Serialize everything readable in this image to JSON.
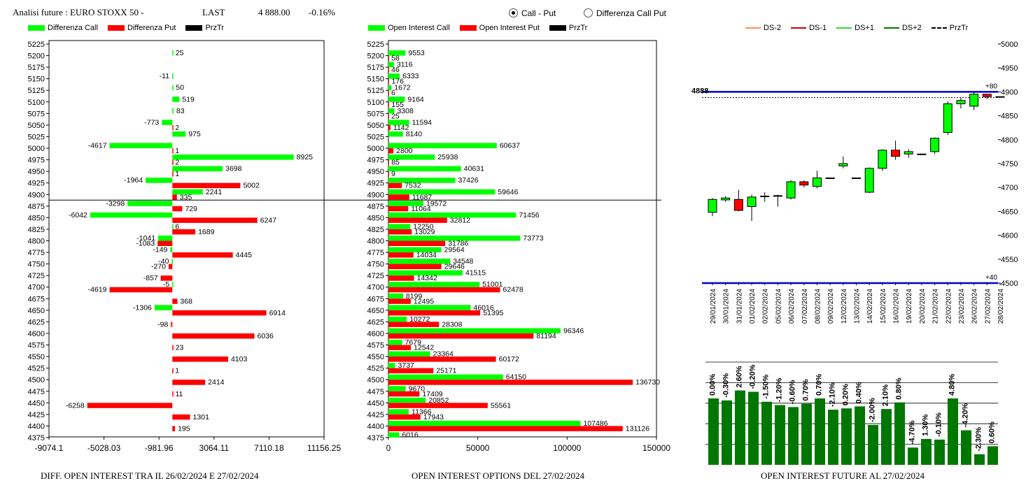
{
  "header": {
    "title": "Analisi future : EURO STOXX 50 -",
    "last_label": "LAST",
    "last_value": "4 888.00",
    "change": "-0.16%"
  },
  "radio": {
    "options": [
      "Call - Put",
      "Differenza Call Put"
    ],
    "selected": "Call - Put"
  },
  "colors": {
    "green": "#00ff00",
    "red": "#ff0000",
    "dark_green": "#007700",
    "blue": "#0000cc"
  },
  "panel_titles": {
    "left": "DIFF. OPEN INTEREST TRA IL 26/02/2024 E 27/02/2024",
    "middle": "OPEN INTEREST OPTIONS DEL 27/02/2024",
    "right": "OPEN INTEREST FUTURE AL 27/02/2024"
  },
  "chart_data": [
    {
      "type": "bar",
      "orientation": "horizontal",
      "legend": [
        "Differenza Call",
        "Differenza Put",
        "PrzTr"
      ],
      "strikes": [
        5225,
        5200,
        5175,
        5150,
        5125,
        5100,
        5075,
        5050,
        5025,
        5000,
        4975,
        4950,
        4925,
        4900,
        4875,
        4850,
        4825,
        4800,
        4775,
        4750,
        4725,
        4700,
        4675,
        4650,
        4625,
        4600,
        4575,
        4550,
        4525,
        4500,
        4475,
        4450,
        4425,
        4400,
        4375
      ],
      "xticks": [
        "-9074.1",
        "-5028.03",
        "-981.96",
        "3064.11",
        "7110.18",
        "11156.25"
      ],
      "xlim": [
        -9074.1,
        11156.25
      ],
      "call_diff": [
        {
          "strike": 5200,
          "value": 25
        },
        {
          "strike": 5150,
          "value": -11
        },
        {
          "strike": 5125,
          "value": 50
        },
        {
          "strike": 5100,
          "value": 519
        },
        {
          "strike": 5075,
          "value": 83
        },
        {
          "strike": 5050,
          "value": -773
        },
        {
          "strike": 5025,
          "value": 975
        },
        {
          "strike": 5000,
          "value": -4617
        },
        {
          "strike": 4975,
          "value": 8925
        },
        {
          "strike": 4950,
          "value": 3698
        },
        {
          "strike": 4925,
          "value": -1964
        },
        {
          "strike": 4900,
          "value": 2241
        },
        {
          "strike": 4875,
          "value": -3298
        },
        {
          "strike": 4850,
          "value": -6042
        },
        {
          "strike": 4825,
          "value": 6
        },
        {
          "strike": 4800,
          "value": -1041
        },
        {
          "strike": 4775,
          "value": -149
        },
        {
          "strike": 4750,
          "value": -40
        },
        {
          "strike": 4700,
          "value": -5
        },
        {
          "strike": 4650,
          "value": -1306
        }
      ],
      "put_diff": [
        {
          "strike": 5050,
          "value": 2
        },
        {
          "strike": 5000,
          "value": 1
        },
        {
          "strike": 4975,
          "value": 2
        },
        {
          "strike": 4950,
          "value": 1
        },
        {
          "strike": 4925,
          "value": 5002
        },
        {
          "strike": 4900,
          "value": 335
        },
        {
          "strike": 4875,
          "value": 729
        },
        {
          "strike": 4850,
          "value": 6247
        },
        {
          "strike": 4825,
          "value": 1689
        },
        {
          "strike": 4800,
          "value": -1083
        },
        {
          "strike": 4775,
          "value": 4445
        },
        {
          "strike": 4750,
          "value": -270
        },
        {
          "strike": 4725,
          "value": -857
        },
        {
          "strike": 4700,
          "value": -4619
        },
        {
          "strike": 4675,
          "value": 368
        },
        {
          "strike": 4650,
          "value": 6914
        },
        {
          "strike": 4625,
          "value": -98
        },
        {
          "strike": 4600,
          "value": 6036
        },
        {
          "strike": 4575,
          "value": 23
        },
        {
          "strike": 4550,
          "value": 4103
        },
        {
          "strike": 4525,
          "value": 1
        },
        {
          "strike": 4500,
          "value": 2414
        },
        {
          "strike": 4475,
          "value": 11
        },
        {
          "strike": 4450,
          "value": -6258
        },
        {
          "strike": 4425,
          "value": 1301
        },
        {
          "strike": 4400,
          "value": 195
        }
      ],
      "przTr_strike": 4888
    },
    {
      "type": "bar",
      "orientation": "horizontal",
      "legend": [
        "Open Interest Call",
        "Open Interest Put",
        "PrzTr"
      ],
      "strikes": [
        5225,
        5200,
        5175,
        5150,
        5125,
        5100,
        5075,
        5050,
        5025,
        5000,
        4975,
        4950,
        4925,
        4900,
        4875,
        4850,
        4825,
        4800,
        4775,
        4750,
        4725,
        4700,
        4675,
        4650,
        4625,
        4600,
        4575,
        4550,
        4525,
        4500,
        4475,
        4450,
        4425,
        4400,
        4375
      ],
      "xticks": [
        "0",
        "50000",
        "100000",
        "150000"
      ],
      "xlim": [
        0,
        150000
      ],
      "call_oi": [
        {
          "strike": 5200,
          "value": 9553
        },
        {
          "strike": 5175,
          "value": 3116
        },
        {
          "strike": 5150,
          "value": 6333
        },
        {
          "strike": 5125,
          "value": 1672
        },
        {
          "strike": 5100,
          "value": 9164
        },
        {
          "strike": 5075,
          "value": 3308
        },
        {
          "strike": 5050,
          "value": 11594
        },
        {
          "strike": 5025,
          "value": 8140
        },
        {
          "strike": 5000,
          "value": 60637
        },
        {
          "strike": 4975,
          "value": 25938
        },
        {
          "strike": 4950,
          "value": 40631
        },
        {
          "strike": 4925,
          "value": 37426
        },
        {
          "strike": 4900,
          "value": 59646
        },
        {
          "strike": 4875,
          "value": 19572
        },
        {
          "strike": 4850,
          "value": 71456
        },
        {
          "strike": 4825,
          "value": 12250
        },
        {
          "strike": 4800,
          "value": 73773
        },
        {
          "strike": 4775,
          "value": 29564
        },
        {
          "strike": 4750,
          "value": 34548
        },
        {
          "strike": 4725,
          "value": 41515
        },
        {
          "strike": 4700,
          "value": 51001
        },
        {
          "strike": 4675,
          "value": 8199
        },
        {
          "strike": 4650,
          "value": 46016
        },
        {
          "strike": 4625,
          "value": 10272
        },
        {
          "strike": 4600,
          "value": 96346
        },
        {
          "strike": 4575,
          "value": 7679
        },
        {
          "strike": 4550,
          "value": 23364
        },
        {
          "strike": 4525,
          "value": 3737
        },
        {
          "strike": 4500,
          "value": 64150
        },
        {
          "strike": 4475,
          "value": 9670
        },
        {
          "strike": 4450,
          "value": 20852
        },
        {
          "strike": 4425,
          "value": 11366
        },
        {
          "strike": 4400,
          "value": 107486
        },
        {
          "strike": 4375,
          "value": 6016
        }
      ],
      "put_oi": [
        {
          "strike": 5200,
          "value": 58
        },
        {
          "strike": 5175,
          "value": 46
        },
        {
          "strike": 5150,
          "value": 176
        },
        {
          "strike": 5125,
          "value": 6
        },
        {
          "strike": 5100,
          "value": 155
        },
        {
          "strike": 5075,
          "value": 25
        },
        {
          "strike": 5050,
          "value": 1142
        },
        {
          "strike": 5000,
          "value": 2800
        },
        {
          "strike": 4975,
          "value": 85
        },
        {
          "strike": 4950,
          "value": 9
        },
        {
          "strike": 4925,
          "value": 7532
        },
        {
          "strike": 4900,
          "value": 11687
        },
        {
          "strike": 4875,
          "value": 11064
        },
        {
          "strike": 4850,
          "value": 32812
        },
        {
          "strike": 4825,
          "value": 13029
        },
        {
          "strike": 4800,
          "value": 31786
        },
        {
          "strike": 4775,
          "value": 14034
        },
        {
          "strike": 4750,
          "value": 29646
        },
        {
          "strike": 4725,
          "value": 14342
        },
        {
          "strike": 4700,
          "value": 62478
        },
        {
          "strike": 4675,
          "value": 12495
        },
        {
          "strike": 4650,
          "value": 51395
        },
        {
          "strike": 4625,
          "value": 28308
        },
        {
          "strike": 4600,
          "value": 81194
        },
        {
          "strike": 4575,
          "value": 12542
        },
        {
          "strike": 4550,
          "value": 60172
        },
        {
          "strike": 4525,
          "value": 25171
        },
        {
          "strike": 4500,
          "value": 136730
        },
        {
          "strike": 4475,
          "value": 17409
        },
        {
          "strike": 4450,
          "value": 55561
        },
        {
          "strike": 4425,
          "value": 17943
        },
        {
          "strike": 4400,
          "value": 131126
        }
      ]
    },
    {
      "type": "candlestick",
      "legend": [
        "DS-2",
        "DS-1",
        "DS+1",
        "DS+2",
        "PrzTr"
      ],
      "dates": [
        "29/01/2024",
        "30/01/2024",
        "31/01/2024",
        "01/02/2024",
        "02/02/2024",
        "05/02/2024",
        "06/02/2024",
        "07/02/2024",
        "08/02/2024",
        "09/02/2024",
        "12/02/2024",
        "13/02/2024",
        "14/02/2024",
        "15/02/2024",
        "16/02/2024",
        "19/02/2024",
        "20/02/2024",
        "21/02/2024",
        "22/02/2024",
        "23/02/2024",
        "26/02/2024",
        "27/02/2024",
        "28/02/2024"
      ],
      "ylim": [
        4500,
        5000
      ],
      "yticks": [
        "4500",
        "4550",
        "4600",
        "4650",
        "4700",
        "4750",
        "4800",
        "4850",
        "4900",
        "4950",
        "5000"
      ],
      "level_price": 4888,
      "level_label": "4888",
      "upper_band": 4900,
      "upper_band_label": "+80",
      "lower_band": 4500,
      "lower_band_label": "+40",
      "ohlc": [
        [
          4648,
          4678,
          4640,
          4675
        ],
        [
          4674,
          4682,
          4670,
          4678
        ],
        [
          4675,
          4695,
          4650,
          4652
        ],
        [
          4660,
          4685,
          4630,
          4680
        ],
        [
          4682,
          4690,
          4670,
          4682
        ],
        [
          4683,
          4685,
          4660,
          4683
        ],
        [
          4678,
          4715,
          4675,
          4712
        ],
        [
          4712,
          4715,
          4700,
          4705
        ],
        [
          4702,
          4735,
          4698,
          4720
        ],
        [
          4720,
          4720,
          4720,
          4720
        ],
        [
          4745,
          4765,
          4740,
          4750
        ],
        [
          4720,
          4720,
          4720,
          4720
        ],
        [
          4690,
          4742,
          4688,
          4740
        ],
        [
          4740,
          4780,
          4735,
          4778
        ],
        [
          4778,
          4798,
          4758,
          4765
        ],
        [
          4770,
          4780,
          4762,
          4775
        ],
        [
          4770,
          4770,
          4770,
          4770
        ],
        [
          4775,
          4805,
          4770,
          4803
        ],
        [
          4815,
          4880,
          4810,
          4875
        ],
        [
          4875,
          4888,
          4865,
          4882
        ],
        [
          4870,
          4900,
          4862,
          4895
        ],
        [
          4895,
          4895,
          4885,
          4890
        ],
        [
          4890,
          4890,
          4890,
          4890
        ]
      ]
    },
    {
      "type": "bar",
      "categories": [
        "29/01/2024",
        "30/01/2024",
        "31/01/2024",
        "01/02/2024",
        "02/02/2024",
        "05/02/2024",
        "06/02/2024",
        "07/02/2024",
        "08/02/2024",
        "09/02/2024",
        "12/02/2024",
        "13/02/2024",
        "14/02/2024",
        "15/02/2024",
        "16/02/2024",
        "19/02/2024",
        "20/02/2024",
        "21/02/2024",
        "22/02/2024",
        "23/02/2024",
        "26/02/2024",
        "27/02/2024"
      ],
      "labels": [
        "0.00%",
        "-0.30%",
        "2.60%",
        "-0.20%",
        "-1.50%",
        "-1.20%",
        "-0.60%",
        "0.70%",
        "0.70%",
        "-2.10%",
        "0.20%",
        "0.40%",
        "-2.00%",
        "2.10%",
        "0.80%",
        "-4.70%",
        "1.30%",
        "-0.10%",
        "4.80%",
        "-4.20%",
        "-2.30%",
        "0.60%"
      ],
      "values": [
        1.0,
        0.97,
        1.12,
        1.1,
        0.95,
        0.9,
        0.87,
        0.92,
        1.0,
        0.83,
        0.85,
        0.88,
        0.6,
        0.84,
        0.94,
        0.26,
        0.39,
        0.38,
        1.0,
        0.52,
        0.16,
        0.28
      ]
    }
  ]
}
